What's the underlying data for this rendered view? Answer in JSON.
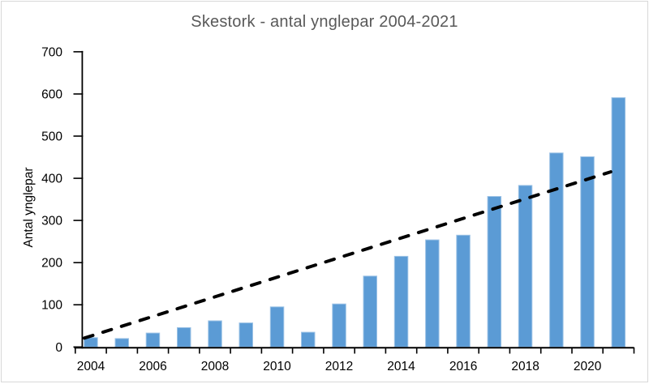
{
  "chart_data": {
    "type": "bar",
    "title": "Skestork - antal ynglepar 2004-2021",
    "ylabel": "Antal ynglepar",
    "xlabel": "",
    "categories": [
      "2004",
      "2005",
      "2006",
      "2007",
      "2008",
      "2009",
      "2010",
      "2011",
      "2012",
      "2013",
      "2014",
      "2015",
      "2016",
      "2017",
      "2018",
      "2019",
      "2020",
      "2021"
    ],
    "values": [
      22,
      20,
      33,
      46,
      62,
      57,
      95,
      35,
      102,
      168,
      215,
      254,
      265,
      357,
      383,
      460,
      451,
      591
    ],
    "ylim": [
      0,
      700
    ],
    "yticks": [
      0,
      100,
      200,
      300,
      400,
      500,
      600,
      700
    ],
    "xtick_labels": [
      "2004",
      "2006",
      "2008",
      "2010",
      "2012",
      "2014",
      "2016",
      "2018",
      "2020"
    ],
    "grid": false,
    "legend": "none",
    "bar_color": "#5B9BD5",
    "bar_edge_color": "#9DC3E6",
    "trendline": {
      "type": "linear",
      "style": "dashed",
      "color": "#000000",
      "start_value": 26,
      "end_value": 421
    },
    "colors": {
      "title_text": "#595959",
      "axis_text": "#000000",
      "axis_line": "#000000",
      "frame_border": "#D8D8D8"
    }
  }
}
